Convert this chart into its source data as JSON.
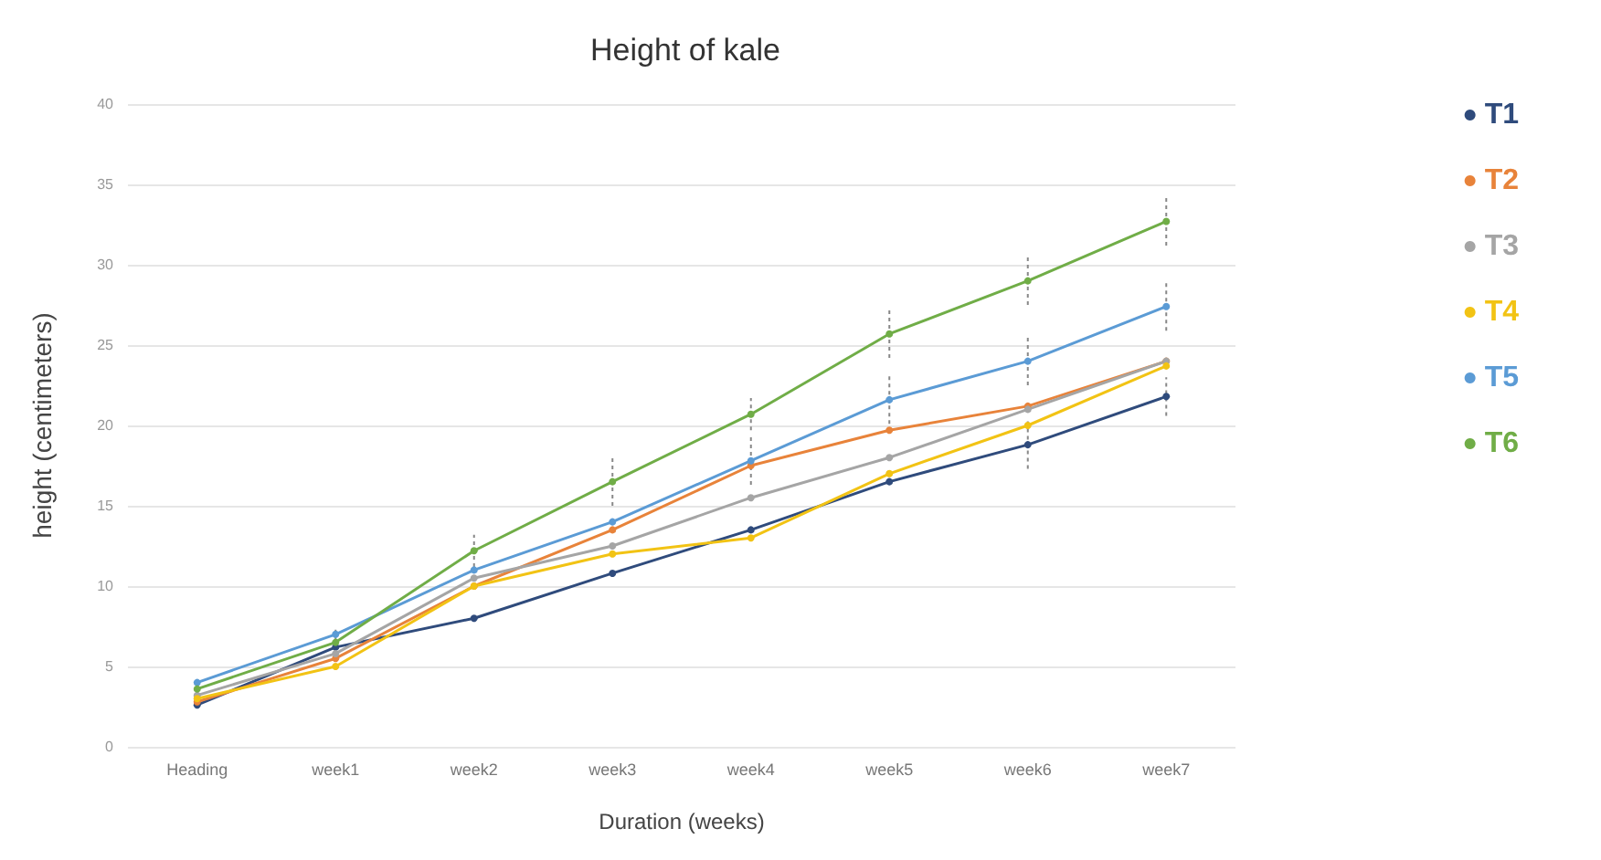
{
  "chart_data": {
    "type": "line",
    "title": "Height of kale",
    "xlabel": "Duration (weeks)",
    "ylabel": "height (centimeters)",
    "categories": [
      "Heading",
      "week1",
      "week2",
      "week3",
      "week4",
      "week5",
      "week6",
      "week7"
    ],
    "series": [
      {
        "name": "T1",
        "color": "#2f4b7c",
        "values": [
          2.6,
          6.2,
          8,
          10.8,
          13.5,
          16.5,
          18.8,
          21.8
        ],
        "errors": [
          null,
          null,
          null,
          null,
          null,
          null,
          1.5,
          1.2
        ]
      },
      {
        "name": "T2",
        "color": "#e8833a",
        "values": [
          2.8,
          5.5,
          10,
          13.5,
          17.5,
          19.7,
          21.2,
          24
        ]
      },
      {
        "name": "T3",
        "color": "#a5a5a5",
        "values": [
          3.2,
          5.8,
          10.5,
          12.5,
          15.5,
          18,
          21,
          24
        ]
      },
      {
        "name": "T4",
        "color": "#f2c314",
        "values": [
          3,
          5,
          10,
          12,
          13,
          17,
          20,
          23.7
        ]
      },
      {
        "name": "T5",
        "color": "#5b9bd5",
        "values": [
          4,
          7,
          11,
          14,
          17.8,
          21.6,
          24,
          27.4
        ],
        "errors": [
          null,
          null,
          null,
          null,
          1.5,
          1.5,
          1.5,
          1.5
        ]
      },
      {
        "name": "T6",
        "color": "#70ad47",
        "values": [
          3.6,
          6.5,
          12.2,
          16.5,
          20.7,
          25.7,
          29,
          32.7
        ],
        "errors": [
          null,
          0.8,
          1,
          1.5,
          1,
          1.5,
          1.5,
          1.5
        ]
      }
    ],
    "ylim": [
      0,
      40
    ],
    "yticks": [
      0,
      5,
      10,
      15,
      20,
      25,
      30,
      35,
      40
    ],
    "grid": "y",
    "legend": "right",
    "marker": "circle",
    "line_style": "solid"
  }
}
